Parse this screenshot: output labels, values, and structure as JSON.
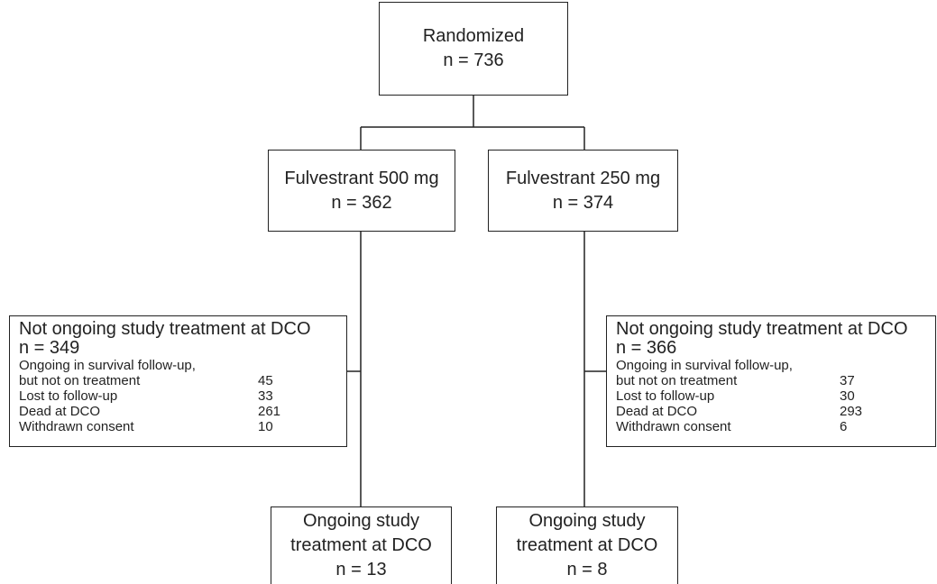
{
  "nodes": [
    {
      "label": "Randomized",
      "n": "n = 736"
    },
    {
      "label": "Fulvestrant 500 mg",
      "n": "n = 362"
    },
    {
      "label": "Fulvestrant 250 mg",
      "n": "n = 374"
    },
    {
      "label": "Not ongoing study treatment at DCO",
      "n": "n = 349",
      "note": "Ongoing in survival follow-up,",
      "items": [
        {
          "label": "but not on treatment",
          "count": "45"
        },
        {
          "label": "Lost to follow-up",
          "count": "33"
        },
        {
          "label": "Dead at DCO",
          "count": "261"
        },
        {
          "label": "Withdrawn consent",
          "count": "10"
        }
      ]
    },
    {
      "label": "Not ongoing study treatment at DCO",
      "n": "n = 366",
      "note": "Ongoing in survival follow-up,",
      "items": [
        {
          "label": "but not on treatment",
          "count": "37"
        },
        {
          "label": "Lost to follow-up",
          "count": "30"
        },
        {
          "label": "Dead at DCO",
          "count": "293"
        },
        {
          "label": "Withdrawn consent",
          "count": "6"
        }
      ]
    },
    {
      "label": "Ongoing study treatment at DCO",
      "n": "n = 13"
    },
    {
      "label": "Ongoing study treatment at DCO",
      "n": "n = 8"
    }
  ]
}
